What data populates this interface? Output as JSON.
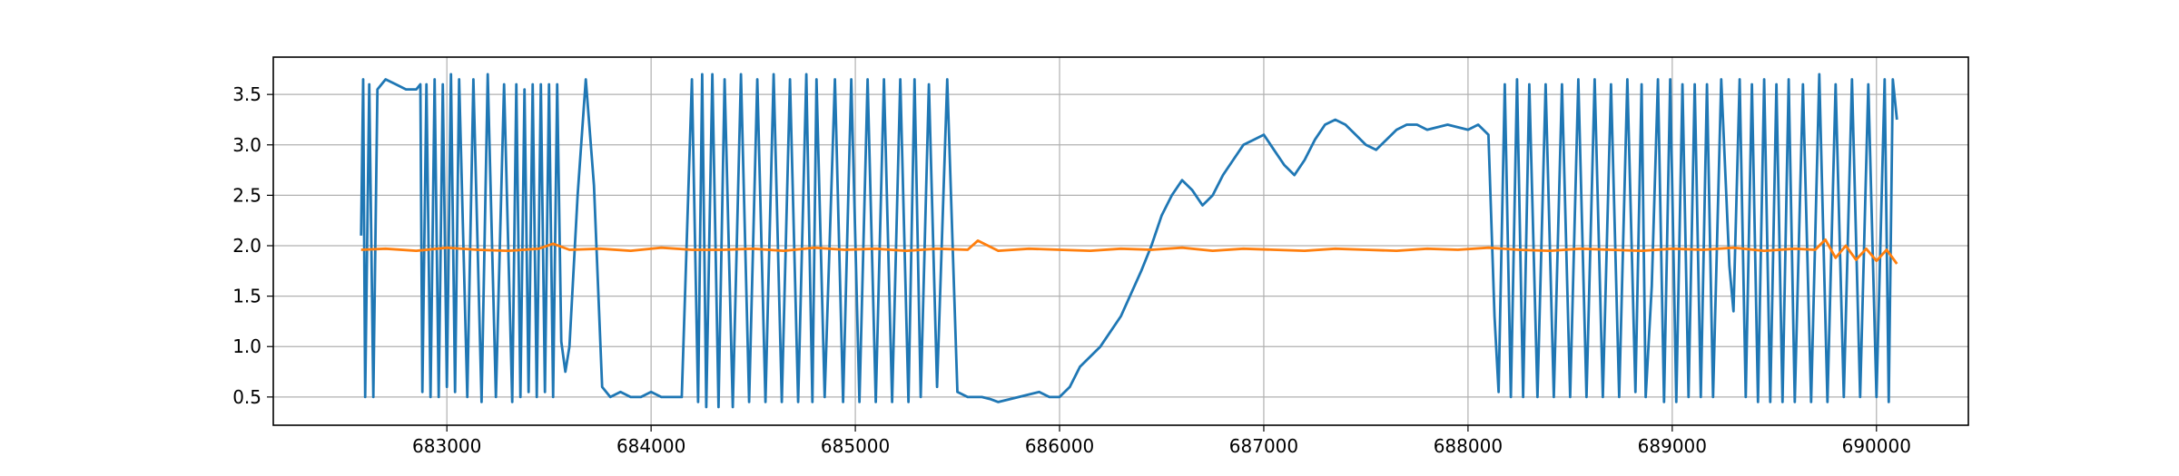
{
  "chart_data": {
    "type": "line",
    "title": "",
    "xlabel": "",
    "ylabel": "",
    "xlim": [
      682150,
      690450
    ],
    "ylim": [
      0.22,
      3.87
    ],
    "x_ticks": [
      683000,
      684000,
      685000,
      686000,
      687000,
      688000,
      689000,
      690000
    ],
    "x_tick_labels": [
      "683000",
      "684000",
      "685000",
      "686000",
      "687000",
      "688000",
      "689000",
      "690000"
    ],
    "y_ticks": [
      0.5,
      1.0,
      1.5,
      2.0,
      2.5,
      3.0,
      3.5
    ],
    "y_tick_labels": [
      "0.5",
      "1.0",
      "1.5",
      "2.0",
      "2.5",
      "3.0",
      "3.5"
    ],
    "grid": true,
    "legend": "none",
    "series": [
      {
        "color": "#1f77b4",
        "x": [
          682580,
          682590,
          682600,
          682620,
          682640,
          682660,
          682700,
          682750,
          682800,
          682850,
          682870,
          682880,
          682900,
          682920,
          682940,
          682960,
          682980,
          683000,
          683020,
          683040,
          683060,
          683100,
          683130,
          683170,
          683200,
          683240,
          683280,
          683320,
          683340,
          683360,
          683380,
          683400,
          683420,
          683440,
          683460,
          683480,
          683500,
          683520,
          683540,
          683560,
          683580,
          683600,
          683640,
          683680,
          683720,
          683760,
          683800,
          683850,
          683900,
          683950,
          684000,
          684050,
          684100,
          684150,
          684200,
          684230,
          684250,
          684270,
          684300,
          684330,
          684360,
          684400,
          684440,
          684480,
          684520,
          684560,
          684600,
          684640,
          684680,
          684720,
          684760,
          684790,
          684810,
          684850,
          684900,
          684940,
          684980,
          685020,
          685060,
          685100,
          685140,
          685180,
          685220,
          685260,
          685290,
          685320,
          685360,
          685400,
          685450,
          685500,
          685550,
          685580,
          685620,
          685660,
          685700,
          685800,
          685900,
          685950,
          686000,
          686050,
          686100,
          686200,
          686300,
          686400,
          686450,
          686500,
          686550,
          686600,
          686650,
          686700,
          686750,
          686800,
          686850,
          686900,
          686950,
          687000,
          687050,
          687100,
          687150,
          687200,
          687250,
          687300,
          687350,
          687400,
          687450,
          687500,
          687550,
          687600,
          687650,
          687700,
          687750,
          687800,
          687900,
          688000,
          688050,
          688100,
          688130,
          688150,
          688180,
          688210,
          688240,
          688270,
          688300,
          688340,
          688380,
          688420,
          688460,
          688500,
          688540,
          688580,
          688620,
          688660,
          688700,
          688740,
          688780,
          688820,
          688850,
          688870,
          688900,
          688930,
          688960,
          688990,
          689020,
          689050,
          689080,
          689110,
          689140,
          689170,
          689200,
          689240,
          689280,
          689300,
          689330,
          689360,
          689390,
          689420,
          689450,
          689480,
          689510,
          689540,
          689570,
          689600,
          689640,
          689680,
          689720,
          689760,
          689800,
          689840,
          689880,
          689920,
          689960,
          690000,
          690040,
          690060,
          690080,
          690100
        ],
        "y": [
          2.1,
          3.65,
          0.5,
          3.6,
          0.5,
          3.55,
          3.65,
          3.6,
          3.55,
          3.55,
          3.6,
          0.55,
          3.6,
          0.5,
          3.65,
          0.5,
          3.6,
          0.6,
          3.7,
          0.55,
          3.65,
          0.5,
          3.65,
          0.45,
          3.7,
          0.5,
          3.6,
          0.45,
          3.6,
          0.5,
          3.55,
          0.55,
          3.6,
          0.5,
          3.6,
          0.55,
          3.6,
          0.5,
          3.6,
          1.05,
          0.75,
          1.0,
          2.5,
          3.65,
          2.6,
          0.6,
          0.5,
          0.55,
          0.5,
          0.5,
          0.55,
          0.5,
          0.5,
          0.5,
          3.65,
          0.45,
          3.7,
          0.4,
          3.7,
          0.4,
          3.65,
          0.4,
          3.7,
          0.45,
          3.65,
          0.45,
          3.7,
          0.45,
          3.65,
          0.45,
          3.7,
          0.45,
          3.65,
          0.5,
          3.65,
          0.45,
          3.65,
          0.45,
          3.65,
          0.45,
          3.65,
          0.45,
          3.65,
          0.45,
          3.65,
          0.5,
          3.6,
          0.6,
          3.65,
          0.55,
          0.5,
          0.5,
          0.5,
          0.48,
          0.45,
          0.5,
          0.55,
          0.5,
          0.5,
          0.6,
          0.8,
          1.0,
          1.3,
          1.75,
          2.0,
          2.3,
          2.5,
          2.65,
          2.55,
          2.4,
          2.5,
          2.7,
          2.85,
          3.0,
          3.05,
          3.1,
          2.95,
          2.8,
          2.7,
          2.85,
          3.05,
          3.2,
          3.25,
          3.2,
          3.1,
          3.0,
          2.95,
          3.05,
          3.15,
          3.2,
          3.2,
          3.15,
          3.2,
          3.15,
          3.2,
          3.1,
          1.3,
          0.55,
          3.6,
          0.5,
          3.65,
          0.5,
          3.6,
          0.5,
          3.6,
          0.5,
          3.6,
          0.5,
          3.65,
          0.5,
          3.65,
          0.5,
          3.6,
          0.5,
          3.65,
          0.55,
          3.6,
          0.5,
          1.6,
          3.65,
          0.45,
          3.65,
          0.45,
          3.6,
          0.5,
          3.6,
          0.5,
          3.6,
          0.5,
          3.65,
          1.8,
          1.35,
          3.65,
          0.5,
          3.6,
          0.45,
          3.65,
          0.45,
          3.6,
          0.45,
          3.65,
          0.45,
          3.6,
          0.45,
          3.7,
          0.45,
          3.6,
          0.5,
          3.65,
          0.5,
          3.6,
          0.5,
          3.65,
          0.45,
          3.65,
          3.25
        ]
      },
      {
        "color": "#ff7f0e",
        "x": [
          682580,
          682700,
          682850,
          683000,
          683150,
          683300,
          683450,
          683520,
          683600,
          683750,
          683900,
          684050,
          684200,
          684350,
          684500,
          684650,
          684800,
          684950,
          685100,
          685250,
          685400,
          685550,
          685600,
          685700,
          685850,
          686000,
          686150,
          686300,
          686450,
          686600,
          686750,
          686900,
          687050,
          687200,
          687350,
          687500,
          687650,
          687800,
          687950,
          688100,
          688250,
          688400,
          688550,
          688700,
          688850,
          689000,
          689150,
          689300,
          689450,
          689600,
          689700,
          689750,
          689800,
          689850,
          689900,
          689950,
          690000,
          690050,
          690100
        ],
        "y": [
          1.96,
          1.97,
          1.95,
          1.98,
          1.96,
          1.95,
          1.97,
          2.02,
          1.96,
          1.97,
          1.95,
          1.98,
          1.96,
          1.96,
          1.97,
          1.95,
          1.98,
          1.96,
          1.97,
          1.95,
          1.97,
          1.96,
          2.05,
          1.95,
          1.97,
          1.96,
          1.95,
          1.97,
          1.96,
          1.98,
          1.95,
          1.97,
          1.96,
          1.95,
          1.97,
          1.96,
          1.95,
          1.97,
          1.96,
          1.98,
          1.96,
          1.95,
          1.97,
          1.96,
          1.95,
          1.97,
          1.96,
          1.98,
          1.95,
          1.97,
          1.96,
          2.06,
          1.88,
          2.0,
          1.86,
          1.97,
          1.85,
          1.96,
          1.82
        ]
      }
    ]
  }
}
